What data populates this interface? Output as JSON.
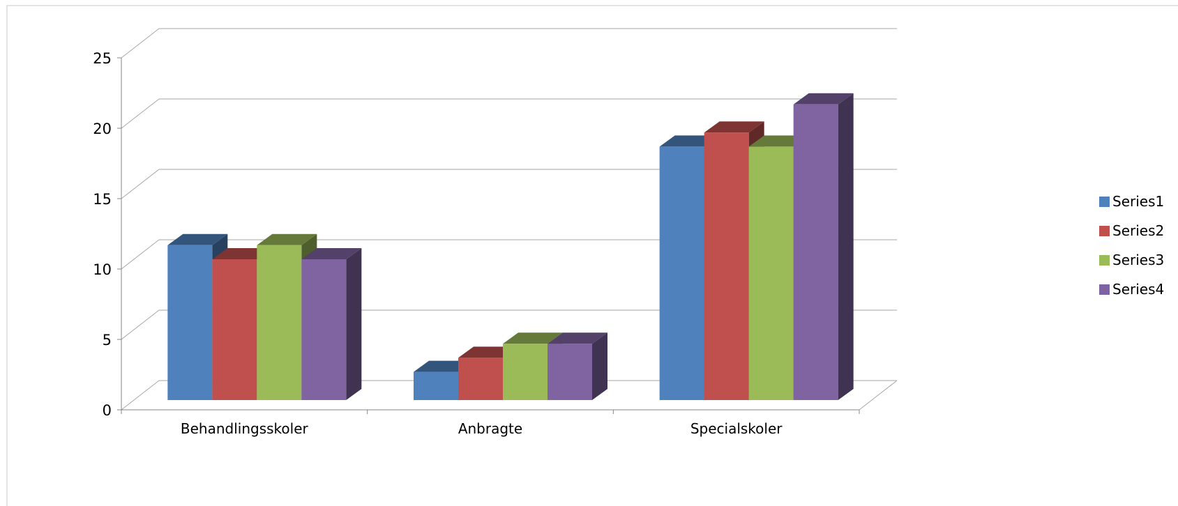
{
  "chart_data": {
    "type": "bar",
    "categories": [
      "Behandlingsskoler",
      "Anbragte",
      "Specialskoler"
    ],
    "series": [
      {
        "name": "Series1",
        "values": [
          11,
          2,
          18
        ],
        "color": "#4F81BD"
      },
      {
        "name": "Series2",
        "values": [
          10,
          3,
          19
        ],
        "color": "#C0504D"
      },
      {
        "name": "Series3",
        "values": [
          11,
          4,
          18
        ],
        "color": "#9BBB59"
      },
      {
        "name": "Series4",
        "values": [
          10,
          4,
          21
        ],
        "color": "#8064A2"
      }
    ],
    "y_ticks": [
      "0",
      "5",
      "10",
      "15",
      "20",
      "25"
    ],
    "ylim": [
      0,
      25
    ],
    "grid": true,
    "legend_position": "right",
    "style": "3d-clustered-column"
  }
}
